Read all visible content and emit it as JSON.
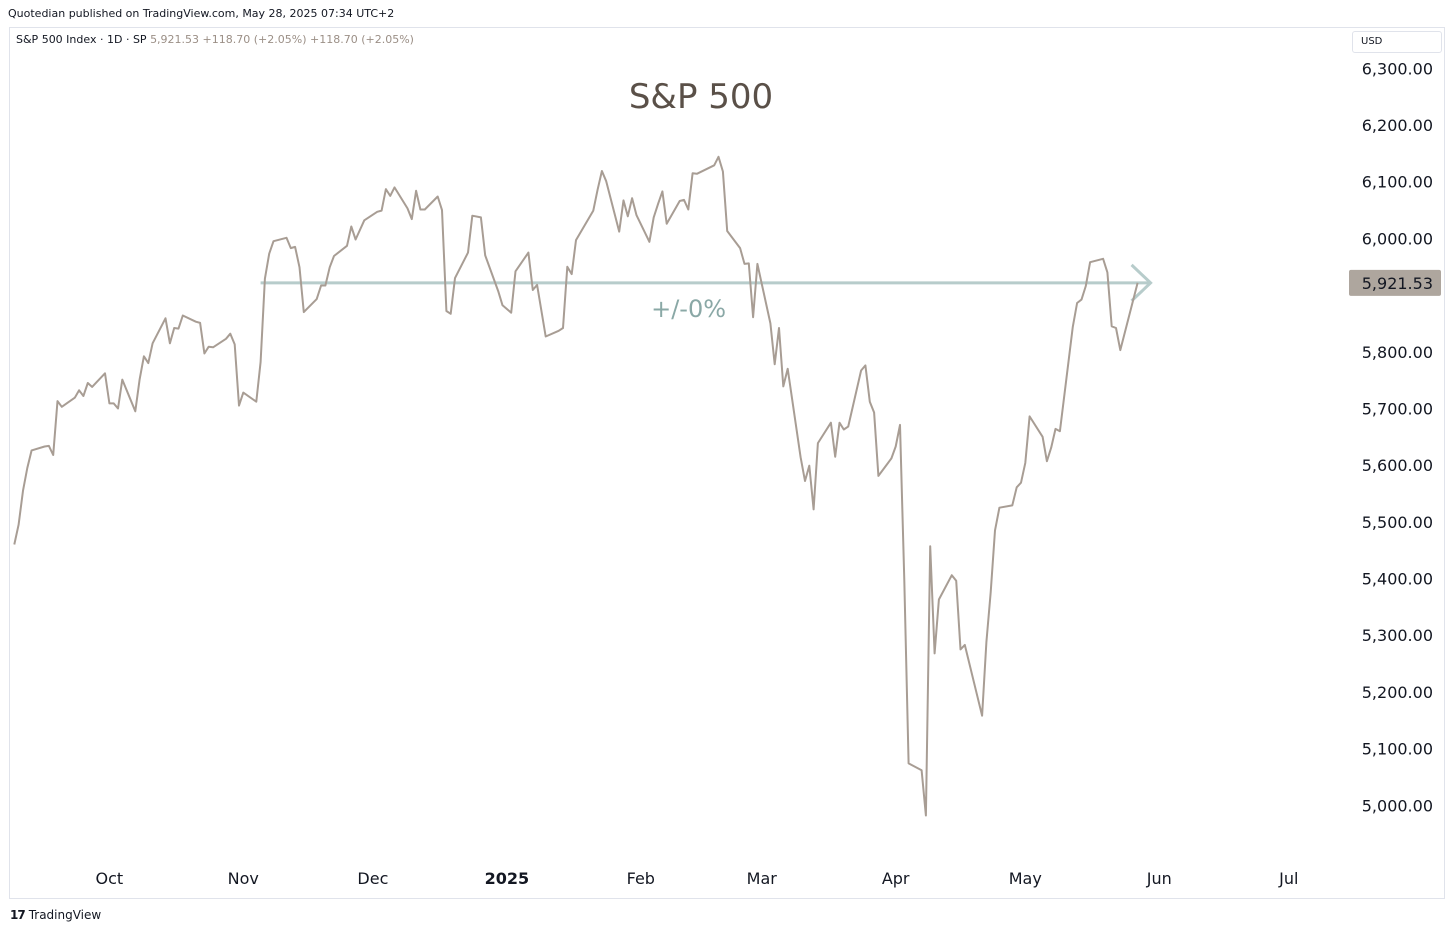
{
  "header": {
    "publisher_text": "Quotedian published on TradingView.com, May 28, 2025 07:34 UTC+2"
  },
  "symbol": {
    "name": "S&P 500 Index",
    "interval": "1D",
    "exchange": "SP",
    "separator": "·",
    "last": "5,921.53",
    "change_1": "+118.70 (+2.05%)",
    "change_2": "+118.70 (+2.05%)"
  },
  "currency": "USD",
  "footer": {
    "logo_mark": "17",
    "logo_text": "TradingView"
  },
  "colors": {
    "line": "#a89d94",
    "reference": "#b7cccb",
    "annotation": "#8aa8a6",
    "price_label_bg": "#aea69e",
    "title": "#5a5048",
    "axis_text": "#131722"
  },
  "chart_data": {
    "type": "line",
    "title": "S&P 500",
    "ylim": [
      4900,
      6350
    ],
    "y_ticks": [
      {
        "value": 5000,
        "label": "5,000.00"
      },
      {
        "value": 5100,
        "label": "5,100.00"
      },
      {
        "value": 5200,
        "label": "5,200.00"
      },
      {
        "value": 5300,
        "label": "5,300.00"
      },
      {
        "value": 5400,
        "label": "5,400.00"
      },
      {
        "value": 5500,
        "label": "5,500.00"
      },
      {
        "value": 5600,
        "label": "5,600.00"
      },
      {
        "value": 5700,
        "label": "5,700.00"
      },
      {
        "value": 5800,
        "label": "5,800.00"
      },
      {
        "value": 6000,
        "label": "6,000.00"
      },
      {
        "value": 6100,
        "label": "6,100.00"
      },
      {
        "value": 6200,
        "label": "6,200.00"
      },
      {
        "value": 6300,
        "label": "6,300.00"
      }
    ],
    "x_ticks": [
      {
        "label": "Oct",
        "date": "2024-10-01"
      },
      {
        "label": "Nov",
        "date": "2024-11-01"
      },
      {
        "label": "Dec",
        "date": "2024-12-01"
      },
      {
        "label": "2025",
        "date": "2025-01-01"
      },
      {
        "label": "Feb",
        "date": "2025-02-01"
      },
      {
        "label": "Mar",
        "date": "2025-03-01"
      },
      {
        "label": "Apr",
        "date": "2025-04-01"
      },
      {
        "label": "May",
        "date": "2025-05-01"
      },
      {
        "label": "Jun",
        "date": "2025-06-01"
      },
      {
        "label": "Jul",
        "date": "2025-07-01"
      }
    ],
    "x_range": [
      "2024-09-08",
      "2025-07-14"
    ],
    "last_price": {
      "value": 5921.53,
      "label": "5,921.53"
    },
    "reference_line": {
      "start": "2024-11-05",
      "end": "2025-05-30",
      "value": 5921.53,
      "label": "+/-0%"
    },
    "grid": false,
    "series": [
      {
        "points": [
          [
            "2024-09-09",
            5460
          ],
          [
            "2024-09-10",
            5495
          ],
          [
            "2024-09-11",
            5555
          ],
          [
            "2024-09-12",
            5595
          ],
          [
            "2024-09-13",
            5626
          ],
          [
            "2024-09-16",
            5633
          ],
          [
            "2024-09-17",
            5634
          ],
          [
            "2024-09-18",
            5618
          ],
          [
            "2024-09-19",
            5713
          ],
          [
            "2024-09-20",
            5703
          ],
          [
            "2024-09-23",
            5719
          ],
          [
            "2024-09-24",
            5732
          ],
          [
            "2024-09-25",
            5722
          ],
          [
            "2024-09-26",
            5745
          ],
          [
            "2024-09-27",
            5738
          ],
          [
            "2024-09-30",
            5762
          ],
          [
            "2024-10-01",
            5709
          ],
          [
            "2024-10-02",
            5709
          ],
          [
            "2024-10-03",
            5700
          ],
          [
            "2024-10-04",
            5751
          ],
          [
            "2024-10-07",
            5695
          ],
          [
            "2024-10-08",
            5751
          ],
          [
            "2024-10-09",
            5792
          ],
          [
            "2024-10-10",
            5780
          ],
          [
            "2024-10-11",
            5815
          ],
          [
            "2024-10-14",
            5859
          ],
          [
            "2024-10-15",
            5815
          ],
          [
            "2024-10-16",
            5842
          ],
          [
            "2024-10-17",
            5841
          ],
          [
            "2024-10-18",
            5864
          ],
          [
            "2024-10-21",
            5853
          ],
          [
            "2024-10-22",
            5851
          ],
          [
            "2024-10-23",
            5797
          ],
          [
            "2024-10-24",
            5809
          ],
          [
            "2024-10-25",
            5808
          ],
          [
            "2024-10-28",
            5823
          ],
          [
            "2024-10-29",
            5832
          ],
          [
            "2024-10-30",
            5813
          ],
          [
            "2024-10-31",
            5705
          ],
          [
            "2024-11-01",
            5728
          ],
          [
            "2024-11-04",
            5712
          ],
          [
            "2024-11-05",
            5782
          ],
          [
            "2024-11-06",
            5929
          ],
          [
            "2024-11-07",
            5973
          ],
          [
            "2024-11-08",
            5995
          ],
          [
            "2024-11-11",
            6001
          ],
          [
            "2024-11-12",
            5983
          ],
          [
            "2024-11-13",
            5985
          ],
          [
            "2024-11-14",
            5949
          ],
          [
            "2024-11-15",
            5870
          ],
          [
            "2024-11-18",
            5893
          ],
          [
            "2024-11-19",
            5917
          ],
          [
            "2024-11-20",
            5917
          ],
          [
            "2024-11-21",
            5949
          ],
          [
            "2024-11-22",
            5969
          ],
          [
            "2024-11-25",
            5987
          ],
          [
            "2024-11-26",
            6021
          ],
          [
            "2024-11-27",
            5998
          ],
          [
            "2024-11-29",
            6032
          ],
          [
            "2024-12-02",
            6047
          ],
          [
            "2024-12-03",
            6049
          ],
          [
            "2024-12-04",
            6087
          ],
          [
            "2024-12-05",
            6075
          ],
          [
            "2024-12-06",
            6090
          ],
          [
            "2024-12-09",
            6053
          ],
          [
            "2024-12-10",
            6034
          ],
          [
            "2024-12-11",
            6084
          ],
          [
            "2024-12-12",
            6051
          ],
          [
            "2024-12-13",
            6051
          ],
          [
            "2024-12-16",
            6074
          ],
          [
            "2024-12-17",
            6050
          ],
          [
            "2024-12-18",
            5872
          ],
          [
            "2024-12-19",
            5867
          ],
          [
            "2024-12-20",
            5930
          ],
          [
            "2024-12-23",
            5975
          ],
          [
            "2024-12-24",
            6040
          ],
          [
            "2024-12-26",
            6037
          ],
          [
            "2024-12-27",
            5970
          ],
          [
            "2024-12-30",
            5907
          ],
          [
            "2024-12-31",
            5882
          ],
          [
            "2025-01-02",
            5869
          ],
          [
            "2025-01-03",
            5942
          ],
          [
            "2025-01-06",
            5975
          ],
          [
            "2025-01-07",
            5909
          ],
          [
            "2025-01-08",
            5918
          ],
          [
            "2025-01-10",
            5827
          ],
          [
            "2025-01-13",
            5837
          ],
          [
            "2025-01-14",
            5842
          ],
          [
            "2025-01-15",
            5950
          ],
          [
            "2025-01-16",
            5937
          ],
          [
            "2025-01-17",
            5997
          ],
          [
            "2025-01-21",
            6049
          ],
          [
            "2025-01-22",
            6086
          ],
          [
            "2025-01-23",
            6119
          ],
          [
            "2025-01-24",
            6101
          ],
          [
            "2025-01-27",
            6012
          ],
          [
            "2025-01-28",
            6067
          ],
          [
            "2025-01-29",
            6039
          ],
          [
            "2025-01-30",
            6071
          ],
          [
            "2025-01-31",
            6041
          ],
          [
            "2025-02-03",
            5994
          ],
          [
            "2025-02-04",
            6037
          ],
          [
            "2025-02-05",
            6061
          ],
          [
            "2025-02-06",
            6083
          ],
          [
            "2025-02-07",
            6026
          ],
          [
            "2025-02-10",
            6066
          ],
          [
            "2025-02-11",
            6068
          ],
          [
            "2025-02-12",
            6051
          ],
          [
            "2025-02-13",
            6115
          ],
          [
            "2025-02-14",
            6114
          ],
          [
            "2025-02-18",
            6129
          ],
          [
            "2025-02-19",
            6144
          ],
          [
            "2025-02-20",
            6118
          ],
          [
            "2025-02-21",
            6013
          ],
          [
            "2025-02-24",
            5983
          ],
          [
            "2025-02-25",
            5955
          ],
          [
            "2025-02-26",
            5956
          ],
          [
            "2025-02-27",
            5861
          ],
          [
            "2025-02-28",
            5955
          ],
          [
            "2025-03-03",
            5850
          ],
          [
            "2025-03-04",
            5778
          ],
          [
            "2025-03-05",
            5842
          ],
          [
            "2025-03-06",
            5739
          ],
          [
            "2025-03-07",
            5770
          ],
          [
            "2025-03-10",
            5614
          ],
          [
            "2025-03-11",
            5572
          ],
          [
            "2025-03-12",
            5599
          ],
          [
            "2025-03-13",
            5522
          ],
          [
            "2025-03-14",
            5639
          ],
          [
            "2025-03-17",
            5675
          ],
          [
            "2025-03-18",
            5615
          ],
          [
            "2025-03-19",
            5675
          ],
          [
            "2025-03-20",
            5663
          ],
          [
            "2025-03-21",
            5668
          ],
          [
            "2025-03-24",
            5767
          ],
          [
            "2025-03-25",
            5776
          ],
          [
            "2025-03-26",
            5712
          ],
          [
            "2025-03-27",
            5693
          ],
          [
            "2025-03-28",
            5581
          ],
          [
            "2025-03-31",
            5612
          ],
          [
            "2025-04-01",
            5633
          ],
          [
            "2025-04-02",
            5671
          ],
          [
            "2025-04-03",
            5397
          ],
          [
            "2025-04-04",
            5074
          ],
          [
            "2025-04-07",
            5062
          ],
          [
            "2025-04-08",
            4982
          ],
          [
            "2025-04-09",
            5457
          ],
          [
            "2025-04-10",
            5268
          ],
          [
            "2025-04-11",
            5363
          ],
          [
            "2025-04-14",
            5406
          ],
          [
            "2025-04-15",
            5396
          ],
          [
            "2025-04-16",
            5275
          ],
          [
            "2025-04-17",
            5283
          ],
          [
            "2025-04-21",
            5158
          ],
          [
            "2025-04-22",
            5288
          ],
          [
            "2025-04-23",
            5376
          ],
          [
            "2025-04-24",
            5485
          ],
          [
            "2025-04-25",
            5525
          ],
          [
            "2025-04-28",
            5529
          ],
          [
            "2025-04-29",
            5561
          ],
          [
            "2025-04-30",
            5569
          ],
          [
            "2025-05-01",
            5604
          ],
          [
            "2025-05-02",
            5686
          ],
          [
            "2025-05-05",
            5650
          ],
          [
            "2025-05-06",
            5607
          ],
          [
            "2025-05-07",
            5631
          ],
          [
            "2025-05-08",
            5664
          ],
          [
            "2025-05-09",
            5660
          ],
          [
            "2025-05-12",
            5844
          ],
          [
            "2025-05-13",
            5886
          ],
          [
            "2025-05-14",
            5892
          ],
          [
            "2025-05-15",
            5916
          ],
          [
            "2025-05-16",
            5958
          ],
          [
            "2025-05-19",
            5964
          ],
          [
            "2025-05-20",
            5940
          ],
          [
            "2025-05-21",
            5845
          ],
          [
            "2025-05-22",
            5842
          ],
          [
            "2025-05-23",
            5803
          ],
          [
            "2025-05-27",
            5921.53
          ]
        ]
      }
    ]
  }
}
